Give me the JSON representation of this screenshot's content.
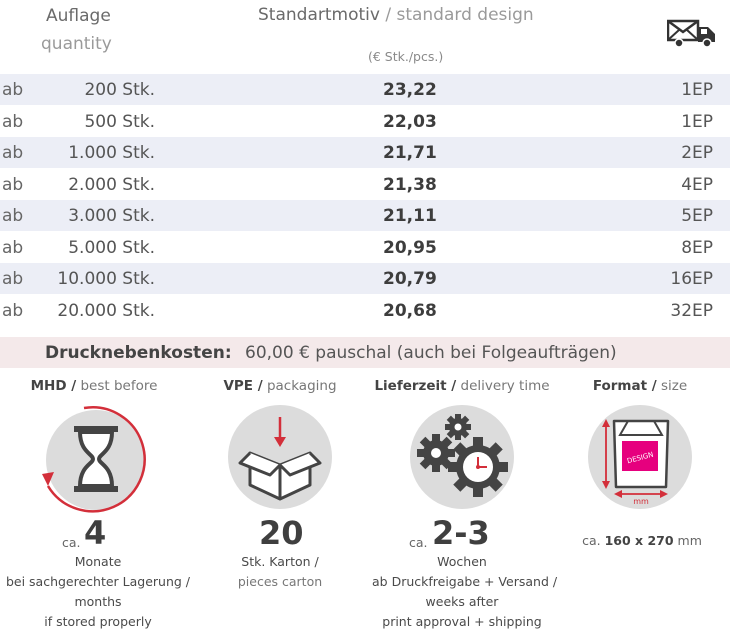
{
  "header": {
    "quantity_de": "Auflage",
    "quantity_en": "quantity",
    "design_de": "Standartmotiv",
    "design_sep": " / ",
    "design_en": "standard design",
    "unit": "(€ Stk./pcs.)",
    "shipping_icon": "truck-with-envelope-icon"
  },
  "price_table": {
    "rows": [
      {
        "prefix": "ab",
        "quantity": "200 Stk.",
        "price": "23,22",
        "shipping": "1EP"
      },
      {
        "prefix": "ab",
        "quantity": "500 Stk.",
        "price": "22,03",
        "shipping": "1EP"
      },
      {
        "prefix": "ab",
        "quantity": "1.000 Stk.",
        "price": "21,71",
        "shipping": "2EP"
      },
      {
        "prefix": "ab",
        "quantity": "2.000 Stk.",
        "price": "21,38",
        "shipping": "4EP"
      },
      {
        "prefix": "ab",
        "quantity": "3.000 Stk.",
        "price": "21,11",
        "shipping": "5EP"
      },
      {
        "prefix": "ab",
        "quantity": "5.000 Stk.",
        "price": "20,95",
        "shipping": "8EP"
      },
      {
        "prefix": "ab",
        "quantity": "10.000 Stk.",
        "price": "20,79",
        "shipping": "16EP"
      },
      {
        "prefix": "ab",
        "quantity": "20.000 Stk.",
        "price": "20,68",
        "shipping": "32EP"
      }
    ]
  },
  "extra_costs": {
    "label": "Drucknebenkosten:",
    "value": "60,00 € pauschal (auch bei Folgeaufträgen)"
  },
  "info": {
    "mhd": {
      "title_de": "MHD /",
      "title_en": " best before",
      "ca": "ca.",
      "value": "4",
      "line1": "Monate",
      "line2": "bei sachgerechter Lagerung /",
      "line3": "months",
      "line4": "if stored properly",
      "icon": "hourglass-icon"
    },
    "vpe": {
      "title_de": "VPE /",
      "title_en": " packaging",
      "value": "20",
      "line1": "Stk. Karton /",
      "line2": "pieces carton",
      "icon": "box-icon"
    },
    "delivery": {
      "title_de": "Lieferzeit /",
      "title_en": " delivery time",
      "ca": "ca.",
      "value": "2-3",
      "line1": "Wochen",
      "line2": "ab Druckfreigabe + Versand /",
      "line3": "weeks after",
      "line4": "print approval + shipping",
      "icon": "gears-clock-icon"
    },
    "format": {
      "title_de": "Format /",
      "title_en": " size",
      "ca": "ca.",
      "value": "160 x 270",
      "unit": " mm",
      "icon_label": "mm",
      "icon_text": "DESIGN",
      "icon": "bag-dimensions-icon"
    }
  },
  "colors": {
    "row_shade": "#eceef6",
    "extra_bg": "#f4e9ea",
    "accent_red": "#d32f3a",
    "accent_pink": "#e6007e",
    "icon_gray": "#dcdcdc"
  }
}
